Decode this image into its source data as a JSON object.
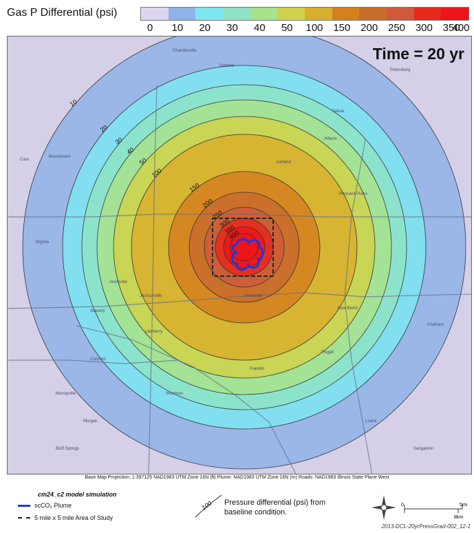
{
  "colorbar": {
    "title": "Gas P Differential (psi)",
    "ticks": [
      "0",
      "10",
      "20",
      "30",
      "40",
      "50",
      "100",
      "150",
      "200",
      "250",
      "300",
      "350",
      "400"
    ],
    "colors": [
      "#dcd6f0",
      "#8fb3e8",
      "#7ee6f0",
      "#8ee4c4",
      "#a8e28c",
      "#cfd24a",
      "#d9ae2c",
      "#d5801e",
      "#c86c2c",
      "#cf5a3a",
      "#e8281c",
      "#ee1418"
    ]
  },
  "map": {
    "time_label": "Time = 20 yr",
    "contour_labels": [
      "10",
      "20",
      "30",
      "40",
      "50",
      "100",
      "150",
      "200",
      "250",
      "300",
      "350",
      "400"
    ],
    "place_labels": [
      "Chandlerville",
      "Petersburg",
      "Oakford",
      "Tallula",
      "Athens",
      "Cass",
      "Beardstown",
      "Ashland",
      "Pleasant Plains",
      "Virginia",
      "Arenzville",
      "Jacksonville",
      "Alexander",
      "New Berlin",
      "Waverly",
      "Franklin",
      "Pisgah",
      "Woodson",
      "Morgan",
      "Sangamon",
      "Murrayville",
      "Loami",
      "Chatham",
      "Concord",
      "Literberry",
      "Bluff Springs"
    ],
    "plume_color": "#1a37e8"
  },
  "projection_note": "Base Map Projection: 1:397125    NAD1983 UTM Zone 16N (ft)    Plume: NAD1983 UTM Zone 16N (m)    Roads: NAD1983 Illinois State Plane West",
  "legend": {
    "title": "cm24_c2 model simulation",
    "plume_label": "scCO₂ Plume",
    "area_label": "5 mile x 5 mile Area of Study",
    "contour_example": "100",
    "contour_desc_1": "Pressure differential (psi) from",
    "contour_desc_2": "baseline condition.",
    "scale_top": "5mi",
    "scale_bottom": "8km",
    "scale_zero": "0",
    "figure_id": "2013-DCL-20yrPressGrad-002_12-1"
  }
}
